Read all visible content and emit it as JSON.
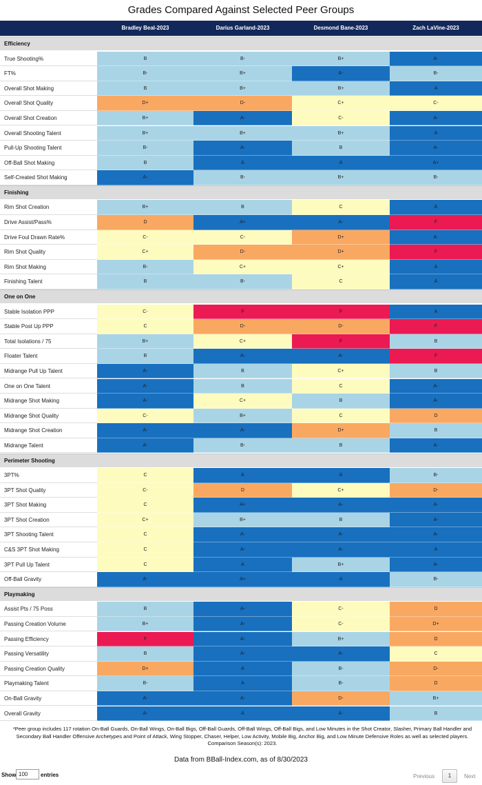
{
  "title": "Grades Compared Against Selected Peer Groups",
  "colors": {
    "A+": "#1870bf",
    "A": "#1870bf",
    "A-": "#1870bf",
    "B+": "#a9d4e6",
    "B": "#a9d4e6",
    "B-": "#a9d4e6",
    "C+": "#fefbbf",
    "C": "#fefbbf",
    "C-": "#fefbbf",
    "D+": "#f9a862",
    "D": "#f9a862",
    "D-": "#f9a862",
    "F": "#ec1a52"
  },
  "chart_data": {
    "type": "table",
    "players": [
      "Bradley Beal-2023",
      "Darius Garland-2023",
      "Desmond Bane-2023",
      "Zach LaVine-2023"
    ],
    "sections": [
      {
        "name": "Efficiency",
        "rows": [
          {
            "label": "True Shooting%",
            "grades": [
              "B",
              "B-",
              "B+",
              "A-"
            ]
          },
          {
            "label": "FT%",
            "grades": [
              "B-",
              "B+",
              "A-",
              "B-"
            ]
          },
          {
            "label": "Overall Shot Making",
            "grades": [
              "B",
              "B+",
              "B+",
              "A"
            ]
          },
          {
            "label": "Overall Shot Quality",
            "grades": [
              "D+",
              "D-",
              "C+",
              "C-"
            ]
          },
          {
            "label": "Overall Shot Creation",
            "grades": [
              "B+",
              "A-",
              "C-",
              "A-"
            ]
          },
          {
            "label": "Overall Shooting Talent",
            "grades": [
              "B+",
              "B+",
              "B+",
              "A"
            ]
          },
          {
            "label": "Pull-Up Shooting Talent",
            "grades": [
              "B-",
              "A-",
              "B",
              "A-"
            ]
          },
          {
            "label": "Off-Ball Shot Making",
            "grades": [
              "B",
              "A",
              "A",
              "A+"
            ]
          },
          {
            "label": "Self-Created Shot Making",
            "grades": [
              "A-",
              "B-",
              "B+",
              "B-"
            ]
          }
        ]
      },
      {
        "name": "Finishing",
        "rows": [
          {
            "label": "Rim Shot Creation",
            "grades": [
              "B+",
              "B",
              "C",
              "A"
            ]
          },
          {
            "label": "Drive Assist/Pass%",
            "grades": [
              "D",
              "A+",
              "A-",
              "F"
            ]
          },
          {
            "label": "Drive Foul Drawn Rate%",
            "grades": [
              "C-",
              "C-",
              "D+",
              "A-"
            ]
          },
          {
            "label": "Rim Shot Quality",
            "grades": [
              "C+",
              "D-",
              "D+",
              "F"
            ]
          },
          {
            "label": "Rim Shot Making",
            "grades": [
              "B-",
              "C+",
              "C+",
              "A"
            ]
          },
          {
            "label": "Finishing Talent",
            "grades": [
              "B",
              "B-",
              "C",
              "A"
            ]
          }
        ]
      },
      {
        "name": "One on One",
        "rows": [
          {
            "label": "Stable Isolation PPP",
            "grades": [
              "C-",
              "F",
              "F",
              "A"
            ]
          },
          {
            "label": "Stable Post Up PPP",
            "grades": [
              "C",
              "D-",
              "D-",
              "F"
            ]
          },
          {
            "label": "Total Isolations / 75",
            "grades": [
              "B+",
              "C+",
              "F",
              "B"
            ]
          },
          {
            "label": "Floater Talent",
            "grades": [
              "B",
              "A-",
              "A-",
              "F"
            ]
          },
          {
            "label": "Midrange Pull Up Talent",
            "grades": [
              "A-",
              "B",
              "C+",
              "B"
            ]
          },
          {
            "label": "One on One Talent",
            "grades": [
              "A-",
              "B",
              "C",
              "A-"
            ]
          },
          {
            "label": "Midrange Shot Making",
            "grades": [
              "A-",
              "C+",
              "B",
              "A-"
            ]
          },
          {
            "label": "Midrange Shot Quality",
            "grades": [
              "C-",
              "B+",
              "C",
              "D"
            ]
          },
          {
            "label": "Midrange Shot Creation",
            "grades": [
              "A-",
              "A-",
              "D+",
              "B"
            ]
          },
          {
            "label": "Midrange Talent",
            "grades": [
              "A-",
              "B-",
              "B",
              "A-"
            ]
          }
        ]
      },
      {
        "name": "Perimeter Shooting",
        "rows": [
          {
            "label": "3PT%",
            "grades": [
              "C",
              "A",
              "A",
              "B-"
            ]
          },
          {
            "label": "3PT Shot Quality",
            "grades": [
              "C-",
              "D",
              "C+",
              "D-"
            ]
          },
          {
            "label": "3PT Shot Making",
            "grades": [
              "C",
              "A+",
              "A-",
              "A-"
            ]
          },
          {
            "label": "3PT Shot Creation",
            "grades": [
              "C+",
              "B+",
              "B",
              "A-"
            ]
          },
          {
            "label": "3PT Shooting Talent",
            "grades": [
              "C",
              "A-",
              "A-",
              "A-"
            ]
          },
          {
            "label": "C&S 3PT Shot Making",
            "grades": [
              "C",
              "A-",
              "A-",
              "A"
            ]
          },
          {
            "label": "3PT Pull Up Talent",
            "grades": [
              "C",
              "A",
              "B+",
              "A-"
            ]
          },
          {
            "label": "Off-Ball Gravity",
            "grades": [
              "A-",
              "A+",
              "A",
              "B-"
            ]
          }
        ]
      },
      {
        "name": "Playmaking",
        "rows": [
          {
            "label": "Assist Pts / 75 Poss",
            "grades": [
              "B",
              "A-",
              "C-",
              "D"
            ]
          },
          {
            "label": "Passing Creation Volume",
            "grades": [
              "B+",
              "A-",
              "C-",
              "D+"
            ]
          },
          {
            "label": "Passing Efficiency",
            "grades": [
              "F",
              "A-",
              "B+",
              "D"
            ]
          },
          {
            "label": "Passing Versatility",
            "grades": [
              "B",
              "A-",
              "A-",
              "C"
            ]
          },
          {
            "label": "Passing Creation Quality",
            "grades": [
              "D+",
              "A",
              "B-",
              "D-"
            ]
          },
          {
            "label": "Playmaking Talent",
            "grades": [
              "B-",
              "A",
              "B-",
              "D"
            ]
          },
          {
            "label": "On-Ball Gravity",
            "grades": [
              "A-",
              "A-",
              "D-",
              "B+"
            ]
          },
          {
            "label": "Overall Gravity",
            "grades": [
              "A-",
              "A",
              "A-",
              "B"
            ]
          }
        ]
      }
    ]
  },
  "footnote": "*Peer group includes 117 rotation On-Ball Guards, On-Ball Wings, On-Ball Bigs, Off-Ball Guards, Off-Ball Wings, Off-Ball Bigs, and Low Minutes in the Shot Creator, Slasher, Primary Ball Handler and Secondary Ball Handler Offensive Archetypes and Point of Attack, Wing Stopper, Chaser, Helper, Low Activity, Mobile Big, Anchor Big, and Low Minute Defensive Roles as well as selected players. Comparison Season(s): 2023.",
  "source": "Data from BBall-Index.com, as of 8/30/2023",
  "controls": {
    "show_label": "Show",
    "entries_value": "100",
    "entries_label": "entries",
    "previous_label": "Previous",
    "page_number": "1",
    "next_label": "Next"
  }
}
